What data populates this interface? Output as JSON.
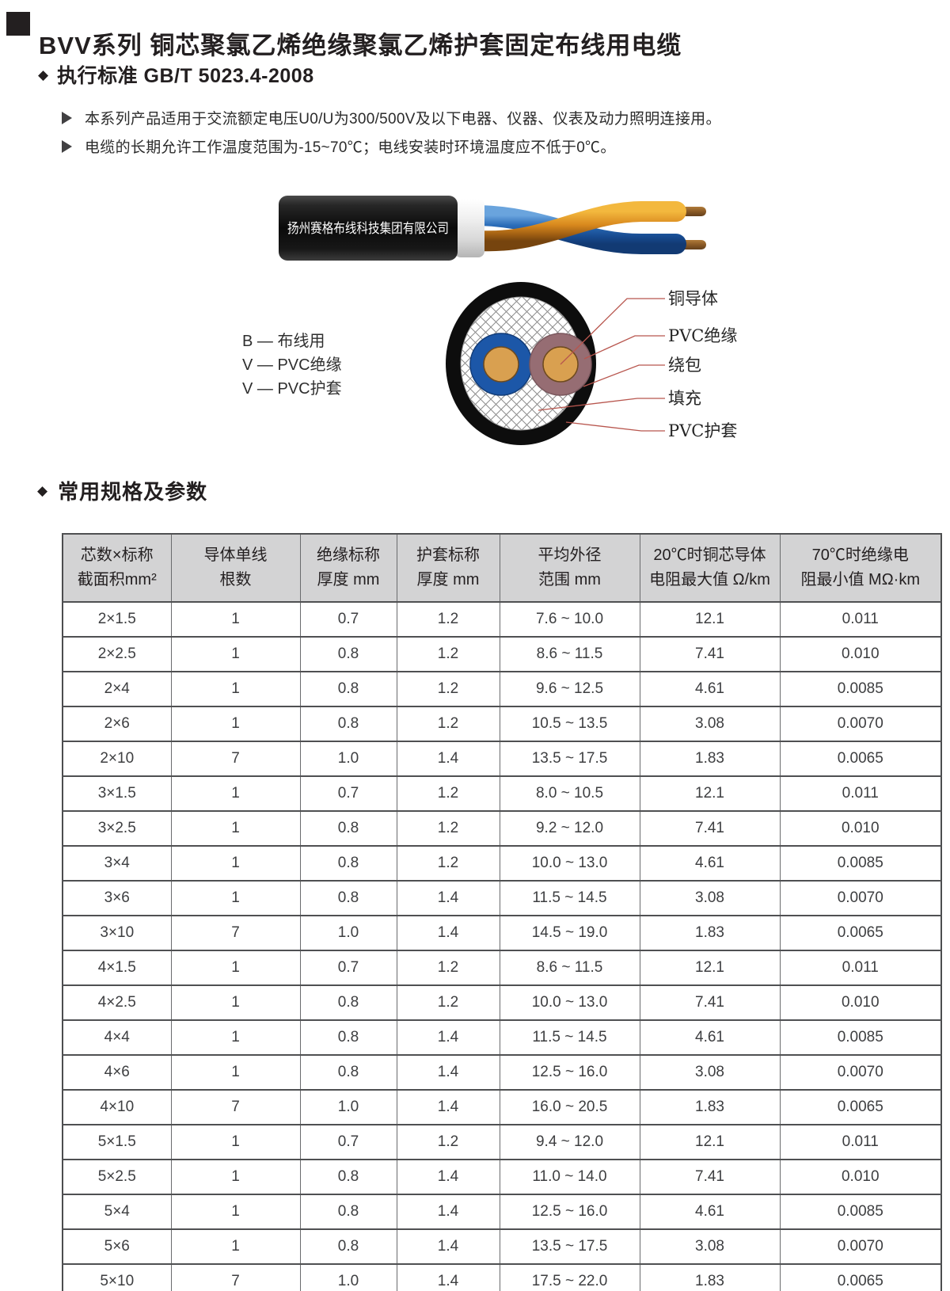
{
  "colors": {
    "accent_leader_line": "#b8564e",
    "table_header_bg": "#d3d3d4",
    "text": "#231f20",
    "blue_core": "#1c57a8",
    "mauve_core": "#966d73",
    "copper": "#d9a050",
    "jacket_black": "#111111"
  },
  "header": {
    "title": "BVV系列 铜芯聚氯乙烯绝缘聚氯乙烯护套固定布线用电缆",
    "standard": "执行标准 GB/T 5023.4-2008"
  },
  "features": [
    "本系列产品适用于交流额定电压U0/U为300/500V及以下电器、仪器、仪表及动力照明连接用。",
    "电缆的长期允许工作温度范围为-15~70℃；电线安装时环境温度应不低于0℃。"
  ],
  "cable_photo": {
    "brand_text": "扬州赛格布线科技集团有限公司"
  },
  "code_legend": {
    "lines": [
      "B — 布线用",
      "V — PVC绝缘",
      "V — PVC护套"
    ]
  },
  "cross_section": {
    "labels": [
      "铜导体",
      "PVC绝缘",
      "绕包",
      "填充",
      "PVC护套"
    ]
  },
  "specs": {
    "section_title": "常用规格及参数",
    "headers": [
      {
        "line1": "芯数×标称",
        "line2": "截面积mm²"
      },
      {
        "line1": "导体单线",
        "line2": "根数"
      },
      {
        "line1": "绝缘标称",
        "line2": "厚度 mm"
      },
      {
        "line1": "护套标称",
        "line2": "厚度 mm"
      },
      {
        "line1": "平均外径",
        "line2": "范围 mm"
      },
      {
        "line1": "20℃时铜芯导体",
        "line2": "电阻最大值 Ω/km"
      },
      {
        "line1": "70℃时绝缘电",
        "line2": "阻最小值 MΩ·km"
      }
    ],
    "rows": [
      [
        "2×1.5",
        "1",
        "0.7",
        "1.2",
        "7.6 ~ 10.0",
        "12.1",
        "0.011"
      ],
      [
        "2×2.5",
        "1",
        "0.8",
        "1.2",
        "8.6 ~ 11.5",
        "7.41",
        "0.010"
      ],
      [
        "2×4",
        "1",
        "0.8",
        "1.2",
        "9.6 ~ 12.5",
        "4.61",
        "0.0085"
      ],
      [
        "2×6",
        "1",
        "0.8",
        "1.2",
        "10.5 ~ 13.5",
        "3.08",
        "0.0070"
      ],
      [
        "2×10",
        "7",
        "1.0",
        "1.4",
        "13.5 ~ 17.5",
        "1.83",
        "0.0065"
      ],
      [
        "3×1.5",
        "1",
        "0.7",
        "1.2",
        "8.0 ~ 10.5",
        "12.1",
        "0.011"
      ],
      [
        "3×2.5",
        "1",
        "0.8",
        "1.2",
        "9.2 ~ 12.0",
        "7.41",
        "0.010"
      ],
      [
        "3×4",
        "1",
        "0.8",
        "1.2",
        "10.0 ~ 13.0",
        "4.61",
        "0.0085"
      ],
      [
        "3×6",
        "1",
        "0.8",
        "1.4",
        "11.5 ~ 14.5",
        "3.08",
        "0.0070"
      ],
      [
        "3×10",
        "7",
        "1.0",
        "1.4",
        "14.5 ~ 19.0",
        "1.83",
        "0.0065"
      ],
      [
        "4×1.5",
        "1",
        "0.7",
        "1.2",
        "8.6 ~ 11.5",
        "12.1",
        "0.011"
      ],
      [
        "4×2.5",
        "1",
        "0.8",
        "1.2",
        "10.0 ~ 13.0",
        "7.41",
        "0.010"
      ],
      [
        "4×4",
        "1",
        "0.8",
        "1.4",
        "11.5 ~ 14.5",
        "4.61",
        "0.0085"
      ],
      [
        "4×6",
        "1",
        "0.8",
        "1.4",
        "12.5 ~ 16.0",
        "3.08",
        "0.0070"
      ],
      [
        "4×10",
        "7",
        "1.0",
        "1.4",
        "16.0 ~ 20.5",
        "1.83",
        "0.0065"
      ],
      [
        "5×1.5",
        "1",
        "0.7",
        "1.2",
        "9.4 ~ 12.0",
        "12.1",
        "0.011"
      ],
      [
        "5×2.5",
        "1",
        "0.8",
        "1.4",
        "11.0 ~ 14.0",
        "7.41",
        "0.010"
      ],
      [
        "5×4",
        "1",
        "0.8",
        "1.4",
        "12.5 ~ 16.0",
        "4.61",
        "0.0085"
      ],
      [
        "5×6",
        "1",
        "0.8",
        "1.4",
        "13.5 ~ 17.5",
        "3.08",
        "0.0070"
      ],
      [
        "5×10",
        "7",
        "1.0",
        "1.4",
        "17.5 ~ 22.0",
        "1.83",
        "0.0065"
      ]
    ]
  }
}
